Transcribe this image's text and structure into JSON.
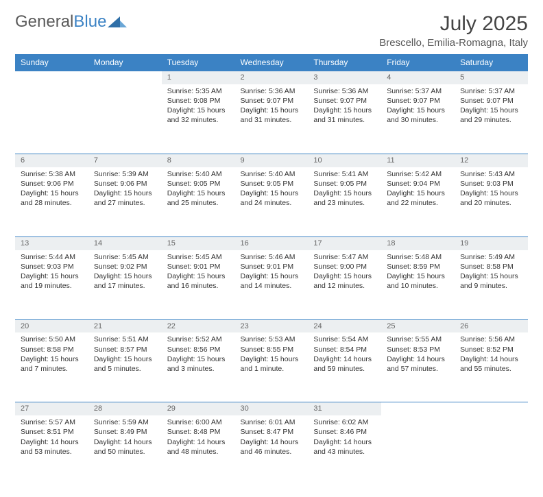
{
  "brand": {
    "general": "General",
    "blue": "Blue"
  },
  "title": "July 2025",
  "subtitle": "Brescello, Emilia-Romagna, Italy",
  "colors": {
    "header_bg": "#3b82c4",
    "header_text": "#ffffff",
    "daynum_bg": "#eceff1",
    "row_border": "#3b82c4",
    "body_text": "#333333",
    "logo_gray": "#5a5a5a",
    "logo_blue": "#3b82c4"
  },
  "weekdays": [
    "Sunday",
    "Monday",
    "Tuesday",
    "Wednesday",
    "Thursday",
    "Friday",
    "Saturday"
  ],
  "weeks": [
    [
      null,
      null,
      {
        "n": "1",
        "sr": "5:35 AM",
        "ss": "9:08 PM",
        "dl": "15 hours and 32 minutes."
      },
      {
        "n": "2",
        "sr": "5:36 AM",
        "ss": "9:07 PM",
        "dl": "15 hours and 31 minutes."
      },
      {
        "n": "3",
        "sr": "5:36 AM",
        "ss": "9:07 PM",
        "dl": "15 hours and 31 minutes."
      },
      {
        "n": "4",
        "sr": "5:37 AM",
        "ss": "9:07 PM",
        "dl": "15 hours and 30 minutes."
      },
      {
        "n": "5",
        "sr": "5:37 AM",
        "ss": "9:07 PM",
        "dl": "15 hours and 29 minutes."
      }
    ],
    [
      {
        "n": "6",
        "sr": "5:38 AM",
        "ss": "9:06 PM",
        "dl": "15 hours and 28 minutes."
      },
      {
        "n": "7",
        "sr": "5:39 AM",
        "ss": "9:06 PM",
        "dl": "15 hours and 27 minutes."
      },
      {
        "n": "8",
        "sr": "5:40 AM",
        "ss": "9:05 PM",
        "dl": "15 hours and 25 minutes."
      },
      {
        "n": "9",
        "sr": "5:40 AM",
        "ss": "9:05 PM",
        "dl": "15 hours and 24 minutes."
      },
      {
        "n": "10",
        "sr": "5:41 AM",
        "ss": "9:05 PM",
        "dl": "15 hours and 23 minutes."
      },
      {
        "n": "11",
        "sr": "5:42 AM",
        "ss": "9:04 PM",
        "dl": "15 hours and 22 minutes."
      },
      {
        "n": "12",
        "sr": "5:43 AM",
        "ss": "9:03 PM",
        "dl": "15 hours and 20 minutes."
      }
    ],
    [
      {
        "n": "13",
        "sr": "5:44 AM",
        "ss": "9:03 PM",
        "dl": "15 hours and 19 minutes."
      },
      {
        "n": "14",
        "sr": "5:45 AM",
        "ss": "9:02 PM",
        "dl": "15 hours and 17 minutes."
      },
      {
        "n": "15",
        "sr": "5:45 AM",
        "ss": "9:01 PM",
        "dl": "15 hours and 16 minutes."
      },
      {
        "n": "16",
        "sr": "5:46 AM",
        "ss": "9:01 PM",
        "dl": "15 hours and 14 minutes."
      },
      {
        "n": "17",
        "sr": "5:47 AM",
        "ss": "9:00 PM",
        "dl": "15 hours and 12 minutes."
      },
      {
        "n": "18",
        "sr": "5:48 AM",
        "ss": "8:59 PM",
        "dl": "15 hours and 10 minutes."
      },
      {
        "n": "19",
        "sr": "5:49 AM",
        "ss": "8:58 PM",
        "dl": "15 hours and 9 minutes."
      }
    ],
    [
      {
        "n": "20",
        "sr": "5:50 AM",
        "ss": "8:58 PM",
        "dl": "15 hours and 7 minutes."
      },
      {
        "n": "21",
        "sr": "5:51 AM",
        "ss": "8:57 PM",
        "dl": "15 hours and 5 minutes."
      },
      {
        "n": "22",
        "sr": "5:52 AM",
        "ss": "8:56 PM",
        "dl": "15 hours and 3 minutes."
      },
      {
        "n": "23",
        "sr": "5:53 AM",
        "ss": "8:55 PM",
        "dl": "15 hours and 1 minute."
      },
      {
        "n": "24",
        "sr": "5:54 AM",
        "ss": "8:54 PM",
        "dl": "14 hours and 59 minutes."
      },
      {
        "n": "25",
        "sr": "5:55 AM",
        "ss": "8:53 PM",
        "dl": "14 hours and 57 minutes."
      },
      {
        "n": "26",
        "sr": "5:56 AM",
        "ss": "8:52 PM",
        "dl": "14 hours and 55 minutes."
      }
    ],
    [
      {
        "n": "27",
        "sr": "5:57 AM",
        "ss": "8:51 PM",
        "dl": "14 hours and 53 minutes."
      },
      {
        "n": "28",
        "sr": "5:59 AM",
        "ss": "8:49 PM",
        "dl": "14 hours and 50 minutes."
      },
      {
        "n": "29",
        "sr": "6:00 AM",
        "ss": "8:48 PM",
        "dl": "14 hours and 48 minutes."
      },
      {
        "n": "30",
        "sr": "6:01 AM",
        "ss": "8:47 PM",
        "dl": "14 hours and 46 minutes."
      },
      {
        "n": "31",
        "sr": "6:02 AM",
        "ss": "8:46 PM",
        "dl": "14 hours and 43 minutes."
      },
      null,
      null
    ]
  ],
  "labels": {
    "sunrise": "Sunrise:",
    "sunset": "Sunset:",
    "daylight": "Daylight:"
  }
}
